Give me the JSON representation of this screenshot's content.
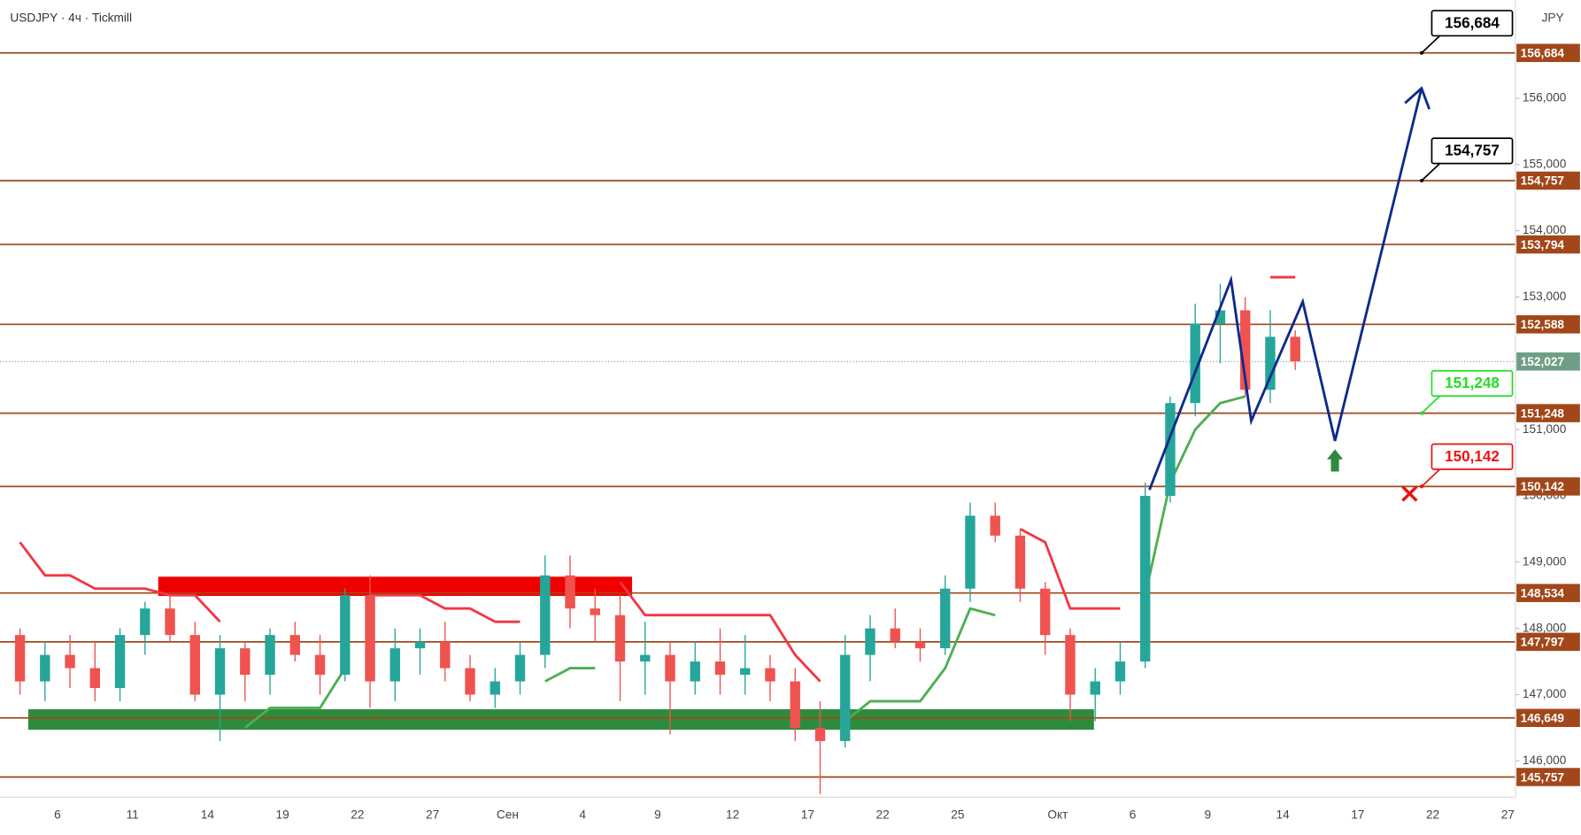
{
  "chart_data": {
    "type": "candlestick",
    "title": "USDJPY · 4ч · Tickmill",
    "currency": "JPY",
    "categories": [
      null,
      null,
      "6",
      null,
      null,
      "11",
      null,
      null,
      "14",
      null,
      null,
      "19",
      null,
      null,
      "22",
      null,
      null,
      "27",
      null,
      null,
      "Сен",
      null,
      null,
      "4",
      null,
      null,
      "9",
      null,
      null,
      "12",
      null,
      null,
      "17",
      null,
      null,
      "22",
      null,
      null,
      "25",
      null,
      null,
      null,
      "Окт",
      null,
      null,
      "6",
      null,
      null,
      "9",
      null,
      null,
      "14",
      null,
      null,
      "17",
      null,
      null,
      "22",
      null,
      null,
      "27"
    ],
    "open": [
      147.9,
      147.2,
      147.6,
      147.4,
      147.1,
      147.9,
      148.3,
      147.9,
      147.0,
      147.7,
      147.3,
      147.9,
      147.6,
      147.3,
      148.5,
      147.2,
      147.7,
      147.8,
      147.4,
      147.0,
      147.2,
      147.6,
      148.8,
      148.3,
      148.2,
      147.5,
      147.6,
      147.2,
      147.5,
      147.3,
      147.4,
      147.2,
      146.5,
      146.3,
      147.6,
      148.0,
      147.8,
      147.7,
      148.6,
      149.7,
      149.4,
      148.6,
      147.9,
      147.0,
      147.2,
      147.5,
      150.0,
      151.4,
      152.6,
      152.8,
      151.6,
      152.4,
      null,
      null,
      null,
      null,
      null,
      null,
      null,
      null,
      null
    ],
    "high": [
      148.0,
      147.8,
      147.9,
      147.8,
      148.0,
      148.4,
      148.5,
      148.1,
      147.9,
      147.8,
      148.0,
      148.1,
      147.9,
      148.6,
      148.8,
      148.0,
      148.0,
      148.1,
      147.6,
      147.4,
      147.8,
      149.1,
      149.1,
      148.6,
      148.5,
      148.1,
      147.8,
      147.8,
      148.0,
      147.9,
      147.6,
      147.4,
      146.9,
      147.9,
      148.2,
      148.3,
      148.0,
      148.8,
      149.9,
      149.9,
      149.5,
      148.7,
      148.0,
      147.4,
      147.8,
      150.2,
      151.5,
      152.9,
      153.2,
      153.0,
      152.8,
      152.5,
      null,
      null,
      null,
      null,
      null,
      null,
      null,
      null,
      null
    ],
    "low": [
      147.0,
      146.9,
      147.1,
      146.9,
      146.9,
      147.6,
      147.8,
      146.9,
      146.3,
      146.9,
      147.0,
      147.5,
      147.0,
      147.2,
      146.8,
      146.9,
      147.3,
      147.2,
      146.9,
      146.8,
      147.0,
      147.4,
      148.0,
      147.8,
      146.9,
      147.0,
      146.4,
      147.0,
      147.0,
      147.0,
      146.9,
      146.3,
      145.5,
      146.2,
      147.2,
      147.7,
      147.5,
      147.6,
      148.4,
      149.3,
      148.4,
      147.6,
      146.6,
      146.6,
      147.0,
      147.4,
      149.9,
      151.2,
      152.0,
      151.5,
      151.4,
      151.9,
      null,
      null,
      null,
      null,
      null,
      null,
      null,
      null,
      null
    ],
    "close": [
      147.2,
      147.6,
      147.4,
      147.1,
      147.9,
      148.3,
      147.9,
      147.0,
      147.7,
      147.3,
      147.9,
      147.6,
      147.3,
      148.5,
      147.2,
      147.7,
      147.8,
      147.4,
      147.0,
      147.2,
      147.6,
      148.8,
      148.3,
      148.2,
      147.5,
      147.6,
      147.2,
      147.5,
      147.3,
      147.4,
      147.2,
      146.5,
      146.3,
      147.6,
      148.0,
      147.8,
      147.7,
      148.6,
      149.7,
      149.4,
      148.6,
      147.9,
      147.0,
      147.2,
      147.5,
      150.0,
      151.4,
      152.6,
      152.8,
      151.6,
      152.4,
      152.03,
      null,
      null,
      null,
      null,
      null,
      null,
      null,
      null,
      null
    ],
    "up_color": "#26a69a",
    "down_color": "#ef5350",
    "trend_stop": {
      "up": [
        null,
        null,
        null,
        null,
        null,
        null,
        null,
        null,
        null,
        146.5,
        146.8,
        146.8,
        146.8,
        147.4,
        null,
        null,
        null,
        null,
        null,
        null,
        null,
        147.2,
        147.4,
        147.4,
        null,
        null,
        null,
        null,
        null,
        null,
        null,
        null,
        null,
        146.6,
        146.9,
        146.9,
        146.9,
        147.4,
        148.3,
        148.2,
        null,
        null,
        null,
        null,
        null,
        148.5,
        150.2,
        151.0,
        151.4,
        151.5,
        null,
        null,
        null,
        null,
        null,
        null,
        null,
        null,
        null,
        null,
        null
      ],
      "down": [
        149.3,
        148.8,
        148.8,
        148.6,
        148.6,
        148.6,
        148.5,
        148.5,
        148.1,
        null,
        null,
        null,
        null,
        null,
        148.5,
        148.5,
        148.5,
        148.3,
        148.3,
        148.1,
        148.1,
        null,
        null,
        null,
        148.7,
        148.2,
        148.2,
        148.2,
        148.2,
        148.2,
        148.2,
        147.6,
        147.2,
        null,
        null,
        null,
        null,
        null,
        null,
        null,
        149.5,
        149.3,
        148.3,
        148.3,
        148.3,
        null,
        null,
        null,
        null,
        null,
        153.3,
        153.3,
        null,
        null,
        null,
        null,
        null,
        null,
        null,
        null,
        null
      ],
      "up_color": "#4caf50",
      "down_color": "#f23645"
    },
    "ylim": [
      145.452,
      157.476
    ],
    "yticks": [
      {
        "value": 146,
        "label": "146,000"
      },
      {
        "value": 147,
        "label": "147,000"
      },
      {
        "value": 148,
        "label": "148,000"
      },
      {
        "value": 149,
        "label": "149,000"
      },
      {
        "value": 150,
        "label": "150,000"
      },
      {
        "value": 151,
        "label": "151,000"
      },
      {
        "value": 153,
        "label": "153,000"
      },
      {
        "value": 154,
        "label": "154,000"
      },
      {
        "value": 155,
        "label": "155,000"
      },
      {
        "value": 156,
        "label": "156,000"
      }
    ],
    "levels": [
      {
        "value": 156.684,
        "label": "156,684"
      },
      {
        "value": 154.757,
        "label": "154,757"
      },
      {
        "value": 153.794,
        "label": "153,794"
      },
      {
        "value": 152.588,
        "label": "152,588"
      },
      {
        "value": 151.248,
        "label": "151,248"
      },
      {
        "value": 150.142,
        "label": "150,142"
      },
      {
        "value": 148.534,
        "label": "148,534"
      },
      {
        "value": 147.797,
        "label": "147,797"
      },
      {
        "value": 146.649,
        "label": "146,649"
      },
      {
        "value": 145.757,
        "label": "145,757"
      }
    ],
    "level_color": "#a1471a",
    "last_price": {
      "value": 152.027,
      "label": "152,027"
    },
    "last_color": "#6f9e86",
    "callouts": [
      {
        "value": 156.684,
        "label": "156,684",
        "color": "#000000"
      },
      {
        "value": 154.757,
        "label": "154,757",
        "color": "#000000"
      },
      {
        "value": 151.248,
        "label": "151,248",
        "color": "#22dd22"
      },
      {
        "value": 150.142,
        "label": "150,142",
        "color": "#ee1111"
      }
    ],
    "zones": [
      {
        "x": [
          6.03,
          24.98
        ],
        "y": [
          148.49,
          148.78
        ],
        "color": "#f00000"
      },
      {
        "x": [
          0.83,
          43.45
        ],
        "y": [
          146.47,
          146.78
        ],
        "color": "#2e8b3e"
      }
    ],
    "projection": {
      "x": [
        45.67,
        48.93,
        49.74,
        51.8,
        53.09,
        56.55
      ],
      "y": [
        150.09,
        153.26,
        151.13,
        152.93,
        150.83,
        156.15
      ],
      "color": "#0d2a8c"
    }
  }
}
